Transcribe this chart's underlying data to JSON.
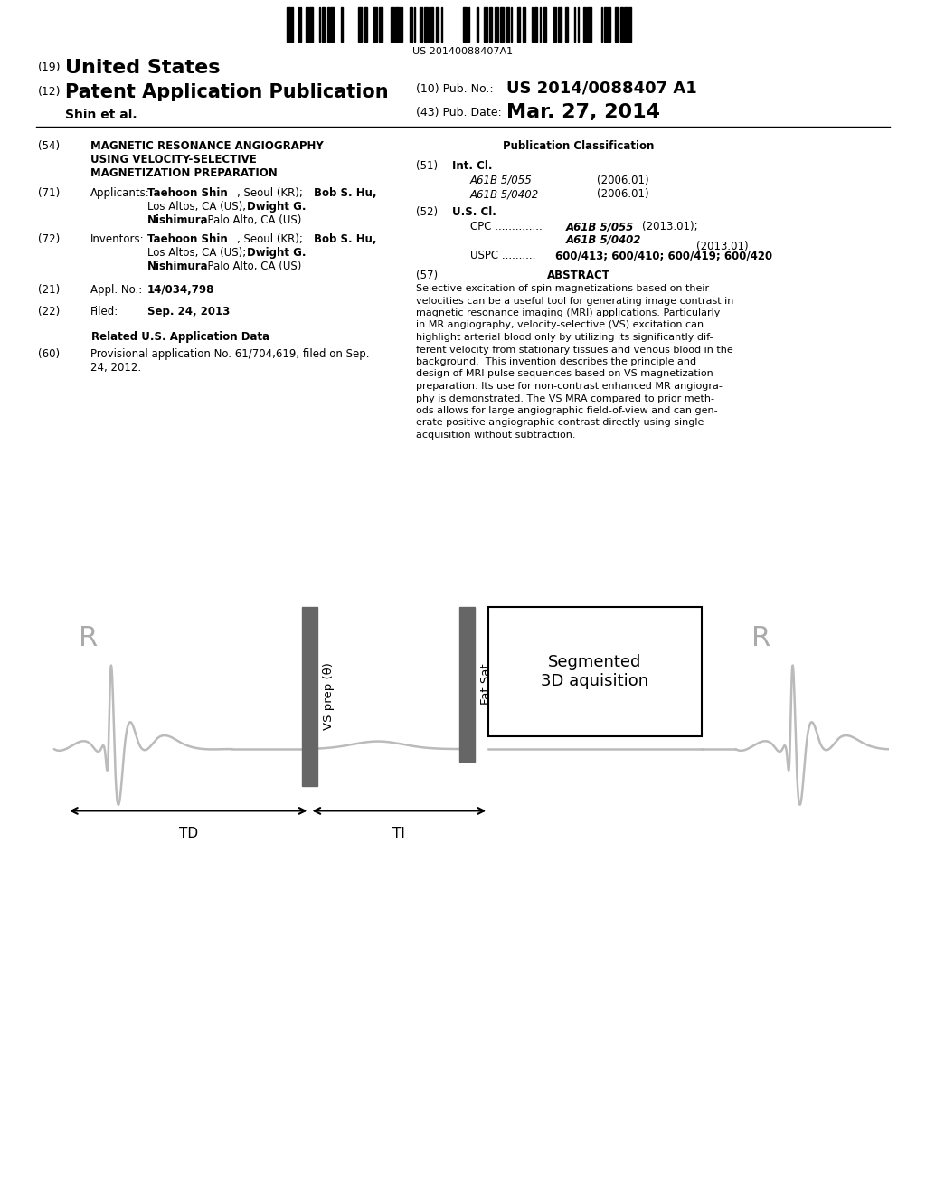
{
  "bg_color": "#ffffff",
  "barcode_text": "US 20140088407A1",
  "ecg_color": "#bbbbbb",
  "vs_bar_color": "#666666",
  "fatsat_bar_color": "#666666",
  "td_label": "TD",
  "ti_label": "TI",
  "vs_label": "VS prep (θ)",
  "fatsat_label": "Fat Sat",
  "seg3d_label": "Segmented\n3D aquisition"
}
